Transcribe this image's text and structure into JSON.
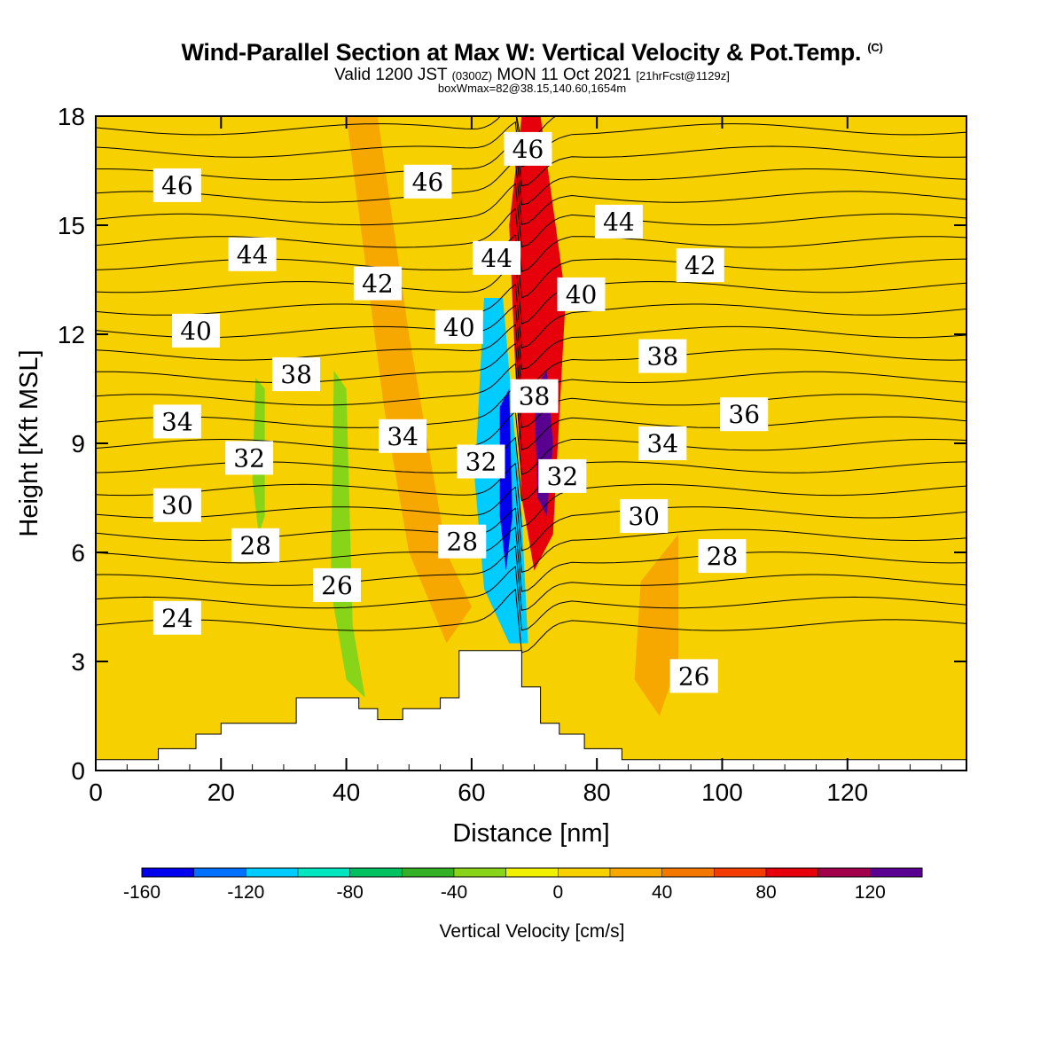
{
  "title": {
    "main": "Wind-Parallel Section at Max W: Vertical Velocity & Pot.Temp.",
    "copyright": "(C)",
    "valid_prefix": "Valid 1200 JST",
    "valid_utc": "(0300Z)",
    "valid_date": "MON 11 Oct 2021",
    "forecast": "[21hrFcst@1129z]",
    "boxwmax": "boxWmax=82@38.15,140.60,1654m"
  },
  "chart_data": {
    "type": "heatmap",
    "xlabel": "Distance [nm]",
    "ylabel": "Height [Kft MSL]",
    "xlim": [
      0,
      139
    ],
    "ylim": [
      0,
      18
    ],
    "x_ticks": [
      0,
      20,
      40,
      60,
      80,
      100,
      120
    ],
    "y_ticks": [
      0,
      3,
      6,
      9,
      12,
      15,
      18
    ],
    "colorbar": {
      "label": "Vertical Velocity [cm/s]",
      "levels": [
        -160,
        -140,
        -120,
        -100,
        -80,
        -60,
        -40,
        -20,
        0,
        20,
        40,
        60,
        80,
        100,
        120,
        140
      ],
      "tick_labels": [
        "-160",
        "-120",
        "-80",
        "-40",
        "0",
        "40",
        "80",
        "120"
      ],
      "colors": [
        "#0000ee",
        "#0070ff",
        "#00ccff",
        "#00e6c0",
        "#00c060",
        "#33b026",
        "#88d418",
        "#f0f000",
        "#f7d000",
        "#f7a800",
        "#f27800",
        "#f23c00",
        "#e6000c",
        "#a0004c",
        "#5a0090"
      ]
    },
    "w_field_background": "#f7d000",
    "w_field_features": [
      {
        "name": "ridge-lee-upward-band",
        "w_cm_s": 80,
        "color": "#e6000c",
        "points": [
          [
            68,
            18
          ],
          [
            71,
            18
          ],
          [
            75,
            13
          ],
          [
            73,
            6.5
          ],
          [
            70,
            5.5
          ],
          [
            68,
            7.5
          ],
          [
            67,
            11
          ],
          [
            66,
            15
          ]
        ]
      },
      {
        "name": "ridge-lee-core",
        "w_cm_s": 120,
        "color": "#5a0090",
        "points": [
          [
            70,
            10.5
          ],
          [
            72,
            11
          ],
          [
            73,
            9
          ],
          [
            72,
            7
          ],
          [
            70.5,
            7.5
          ]
        ]
      },
      {
        "name": "ridge-downward-band",
        "w_cm_s": -120,
        "color": "#00ccff",
        "points": [
          [
            62,
            13
          ],
          [
            65,
            13
          ],
          [
            68,
            7
          ],
          [
            69,
            3.5
          ],
          [
            66,
            3.5
          ],
          [
            62,
            5
          ],
          [
            60.5,
            8
          ]
        ]
      },
      {
        "name": "ridge-downward-core",
        "w_cm_s": -160,
        "color": "#0000ee",
        "points": [
          [
            64.5,
            10
          ],
          [
            66,
            10.5
          ],
          [
            66.5,
            7
          ],
          [
            65.5,
            5.5
          ],
          [
            64.5,
            7
          ]
        ]
      },
      {
        "name": "narrow-downward-x38",
        "w_cm_s": -40,
        "color": "#88d418",
        "points": [
          [
            38,
            11
          ],
          [
            40,
            10.5
          ],
          [
            41,
            4
          ],
          [
            43,
            2
          ],
          [
            40,
            2.5
          ],
          [
            37.5,
            5
          ]
        ]
      },
      {
        "name": "narrow-downward-x26",
        "w_cm_s": -40,
        "color": "#88d418",
        "points": [
          [
            25.5,
            10.8
          ],
          [
            27,
            10.5
          ],
          [
            27,
            7
          ],
          [
            26,
            6.5
          ],
          [
            25,
            8
          ]
        ]
      },
      {
        "name": "updraft-x42-55",
        "w_cm_s": 40,
        "color": "#f7a800",
        "points": [
          [
            40,
            18
          ],
          [
            45,
            18
          ],
          [
            50,
            12
          ],
          [
            56,
            6
          ],
          [
            60,
            4.5
          ],
          [
            56,
            3.5
          ],
          [
            50,
            6
          ],
          [
            46,
            10
          ],
          [
            43,
            14
          ]
        ]
      },
      {
        "name": "updraft-x88-94",
        "w_cm_s": 40,
        "color": "#f7a800",
        "points": [
          [
            87,
            5.2
          ],
          [
            93,
            6.5
          ],
          [
            93,
            3
          ],
          [
            90,
            1.5
          ],
          [
            86,
            2.5
          ]
        ]
      }
    ],
    "terrain": {
      "x": [
        0,
        10,
        10,
        16,
        16,
        20,
        20,
        32,
        32,
        42,
        42,
        45,
        45,
        49,
        49,
        55,
        55,
        58,
        58,
        68,
        68,
        71,
        71,
        74,
        74,
        78,
        78,
        84,
        84,
        139
      ],
      "top_kft": [
        0.3,
        0.3,
        0.6,
        0.6,
        1.0,
        1.0,
        1.3,
        1.3,
        2.0,
        2.0,
        1.7,
        1.7,
        1.4,
        1.4,
        1.7,
        1.7,
        2.0,
        2.0,
        3.3,
        3.3,
        2.3,
        2.3,
        1.3,
        1.3,
        1.0,
        1.0,
        0.6,
        0.6,
        0.3,
        0.3
      ]
    },
    "theta_contours": {
      "unit": "degC",
      "levels": [
        24,
        25,
        26,
        27,
        28,
        29,
        30,
        31,
        32,
        33,
        34,
        35,
        36,
        37,
        38,
        39,
        40,
        41,
        42,
        43,
        44,
        45,
        46,
        47
      ],
      "labels": [
        {
          "text": "46",
          "x": 13,
          "y": 16.1
        },
        {
          "text": "44",
          "x": 25,
          "y": 14.2
        },
        {
          "text": "40",
          "x": 16,
          "y": 12.1
        },
        {
          "text": "38",
          "x": 32,
          "y": 10.9
        },
        {
          "text": "34",
          "x": 13,
          "y": 9.6
        },
        {
          "text": "32",
          "x": 24.5,
          "y": 8.6
        },
        {
          "text": "30",
          "x": 13,
          "y": 7.3
        },
        {
          "text": "28",
          "x": 25.5,
          "y": 6.2
        },
        {
          "text": "26",
          "x": 38.5,
          "y": 5.1
        },
        {
          "text": "24",
          "x": 13,
          "y": 4.2
        },
        {
          "text": "46",
          "x": 53,
          "y": 16.2
        },
        {
          "text": "42",
          "x": 45,
          "y": 13.4
        },
        {
          "text": "40",
          "x": 58,
          "y": 12.2
        },
        {
          "text": "34",
          "x": 49,
          "y": 9.2
        },
        {
          "text": "32",
          "x": 61.5,
          "y": 8.5
        },
        {
          "text": "28",
          "x": 58.5,
          "y": 6.3
        },
        {
          "text": "44",
          "x": 64,
          "y": 14.1
        },
        {
          "text": "46",
          "x": 69,
          "y": 17.1
        },
        {
          "text": "38",
          "x": 70,
          "y": 10.3
        },
        {
          "text": "32",
          "x": 74.5,
          "y": 8.1
        },
        {
          "text": "40",
          "x": 77.5,
          "y": 13.1
        },
        {
          "text": "44",
          "x": 83.5,
          "y": 15.1
        },
        {
          "text": "42",
          "x": 96.5,
          "y": 13.9
        },
        {
          "text": "38",
          "x": 90.5,
          "y": 11.4
        },
        {
          "text": "36",
          "x": 103.5,
          "y": 9.8
        },
        {
          "text": "34",
          "x": 90.5,
          "y": 9.0
        },
        {
          "text": "30",
          "x": 87.5,
          "y": 7.0
        },
        {
          "text": "28",
          "x": 100,
          "y": 5.9
        },
        {
          "text": "26",
          "x": 95.5,
          "y": 2.6
        }
      ]
    }
  }
}
